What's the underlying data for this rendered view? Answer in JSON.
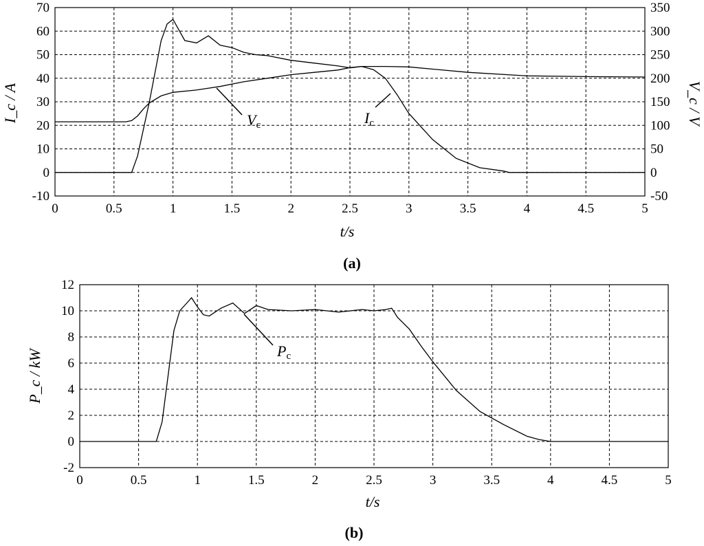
{
  "chart_data": [
    {
      "panel": "a",
      "type": "line",
      "caption": "(a)",
      "xlabel": "t/s",
      "ylabel_left": "I_c / A",
      "ylabel_right": "V_c / V",
      "xlim": [
        0,
        5
      ],
      "ylim_left": [
        -10,
        70
      ],
      "ylim_right": [
        -50,
        350
      ],
      "xticks": [
        "0",
        "0.5",
        "1",
        "1.5",
        "2",
        "2.5",
        "3",
        "3.5",
        "4",
        "4.5",
        "5"
      ],
      "yticks_left": [
        "-10",
        "0",
        "10",
        "20",
        "30",
        "40",
        "50",
        "60",
        "70"
      ],
      "yticks_right": [
        "-50",
        "0",
        "50",
        "100",
        "150",
        "200",
        "250",
        "300",
        "350"
      ],
      "grid": true,
      "annotations": [
        {
          "main": "V",
          "sub": "c"
        },
        {
          "main": "I",
          "sub": "c"
        }
      ],
      "series": [
        {
          "axis": "right",
          "x": [
            0,
            0.3,
            0.6,
            0.65,
            0.7,
            0.8,
            0.9,
            0.95,
            1.0,
            1.1,
            1.2,
            1.3,
            1.4,
            1.5,
            1.6,
            1.7,
            1.8,
            2.0,
            2.2,
            2.4,
            2.5,
            2.6,
            2.7,
            2.8,
            2.9,
            3.0,
            3.2,
            3.4,
            3.6,
            3.8,
            3.85,
            3.9,
            4.0,
            4.5,
            5.0
          ],
          "y": [
            0,
            0,
            0,
            0,
            35,
            150,
            280,
            315,
            325,
            280,
            275,
            290,
            270,
            265,
            255,
            250,
            248,
            238,
            232,
            226,
            222,
            225,
            218,
            200,
            165,
            125,
            70,
            30,
            10,
            3,
            0,
            0,
            0,
            0,
            0
          ]
        },
        {
          "axis": "left",
          "x": [
            0,
            0.3,
            0.6,
            0.65,
            0.7,
            0.75,
            0.8,
            0.9,
            1.0,
            1.2,
            1.4,
            1.6,
            1.8,
            2.0,
            2.2,
            2.4,
            2.5,
            2.6,
            2.8,
            3.0,
            3.5,
            4.0,
            4.5,
            5.0
          ],
          "y": [
            21.5,
            21.5,
            21.5,
            22,
            24,
            27,
            29.5,
            32.5,
            34,
            35,
            36.5,
            38.5,
            40,
            41.5,
            42.5,
            43.5,
            44.5,
            45,
            45,
            44.8,
            42.5,
            41,
            40.7,
            40.5
          ]
        }
      ]
    },
    {
      "panel": "b",
      "type": "line",
      "caption": "(b)",
      "xlabel": "t/s",
      "ylabel": "P_c / kW",
      "xlim": [
        0,
        5
      ],
      "ylim": [
        -2,
        12
      ],
      "xticks": [
        "0",
        "0.5",
        "1",
        "1.5",
        "2",
        "2.5",
        "3",
        "3.5",
        "4",
        "4.5",
        "5"
      ],
      "yticks": [
        "-2",
        "0",
        "2",
        "4",
        "6",
        "8",
        "10",
        "12"
      ],
      "grid": true,
      "annotations": [
        {
          "main": "P",
          "sub": "c"
        }
      ],
      "series": [
        {
          "x": [
            0,
            0.3,
            0.6,
            0.65,
            0.7,
            0.75,
            0.8,
            0.85,
            0.9,
            0.95,
            1.0,
            1.05,
            1.1,
            1.2,
            1.3,
            1.4,
            1.5,
            1.6,
            1.8,
            2.0,
            2.2,
            2.4,
            2.5,
            2.6,
            2.65,
            2.7,
            2.8,
            2.9,
            3.0,
            3.2,
            3.4,
            3.6,
            3.8,
            3.9,
            4.0,
            4.5,
            5.0
          ],
          "y": [
            0,
            0,
            0,
            0,
            1.5,
            5,
            8.5,
            10,
            10.5,
            11,
            10.3,
            9.7,
            9.6,
            10.2,
            10.6,
            9.8,
            10.4,
            10.1,
            10,
            10.1,
            9.9,
            10.1,
            10,
            10.1,
            10.2,
            9.5,
            8.6,
            7.3,
            6.1,
            3.9,
            2.3,
            1.3,
            0.4,
            0.15,
            0,
            0,
            0
          ]
        }
      ]
    }
  ]
}
